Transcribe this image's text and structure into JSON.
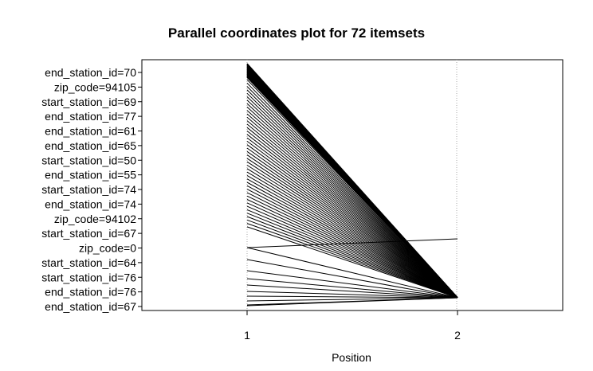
{
  "chart_data": {
    "type": "parallel-coordinates",
    "title": "Parallel coordinates plot for 72 itemsets",
    "xlabel": "Position",
    "x_ticks": [
      "1",
      "2"
    ],
    "xlim": [
      0.5,
      2.5
    ],
    "y_labels": [
      "end_station_id=70",
      "zip_code=94105",
      "start_station_id=69",
      "end_station_id=77",
      "end_station_id=61",
      "end_station_id=65",
      "start_station_id=50",
      "end_station_id=55",
      "start_station_id=74",
      "end_station_id=74",
      "zip_code=94102",
      "start_station_id=67",
      "zip_code=0",
      "start_station_id=64",
      "start_station_id=76",
      "end_station_id=76",
      "end_station_id=67"
    ],
    "item_count": 72,
    "line_color": "#000000"
  }
}
